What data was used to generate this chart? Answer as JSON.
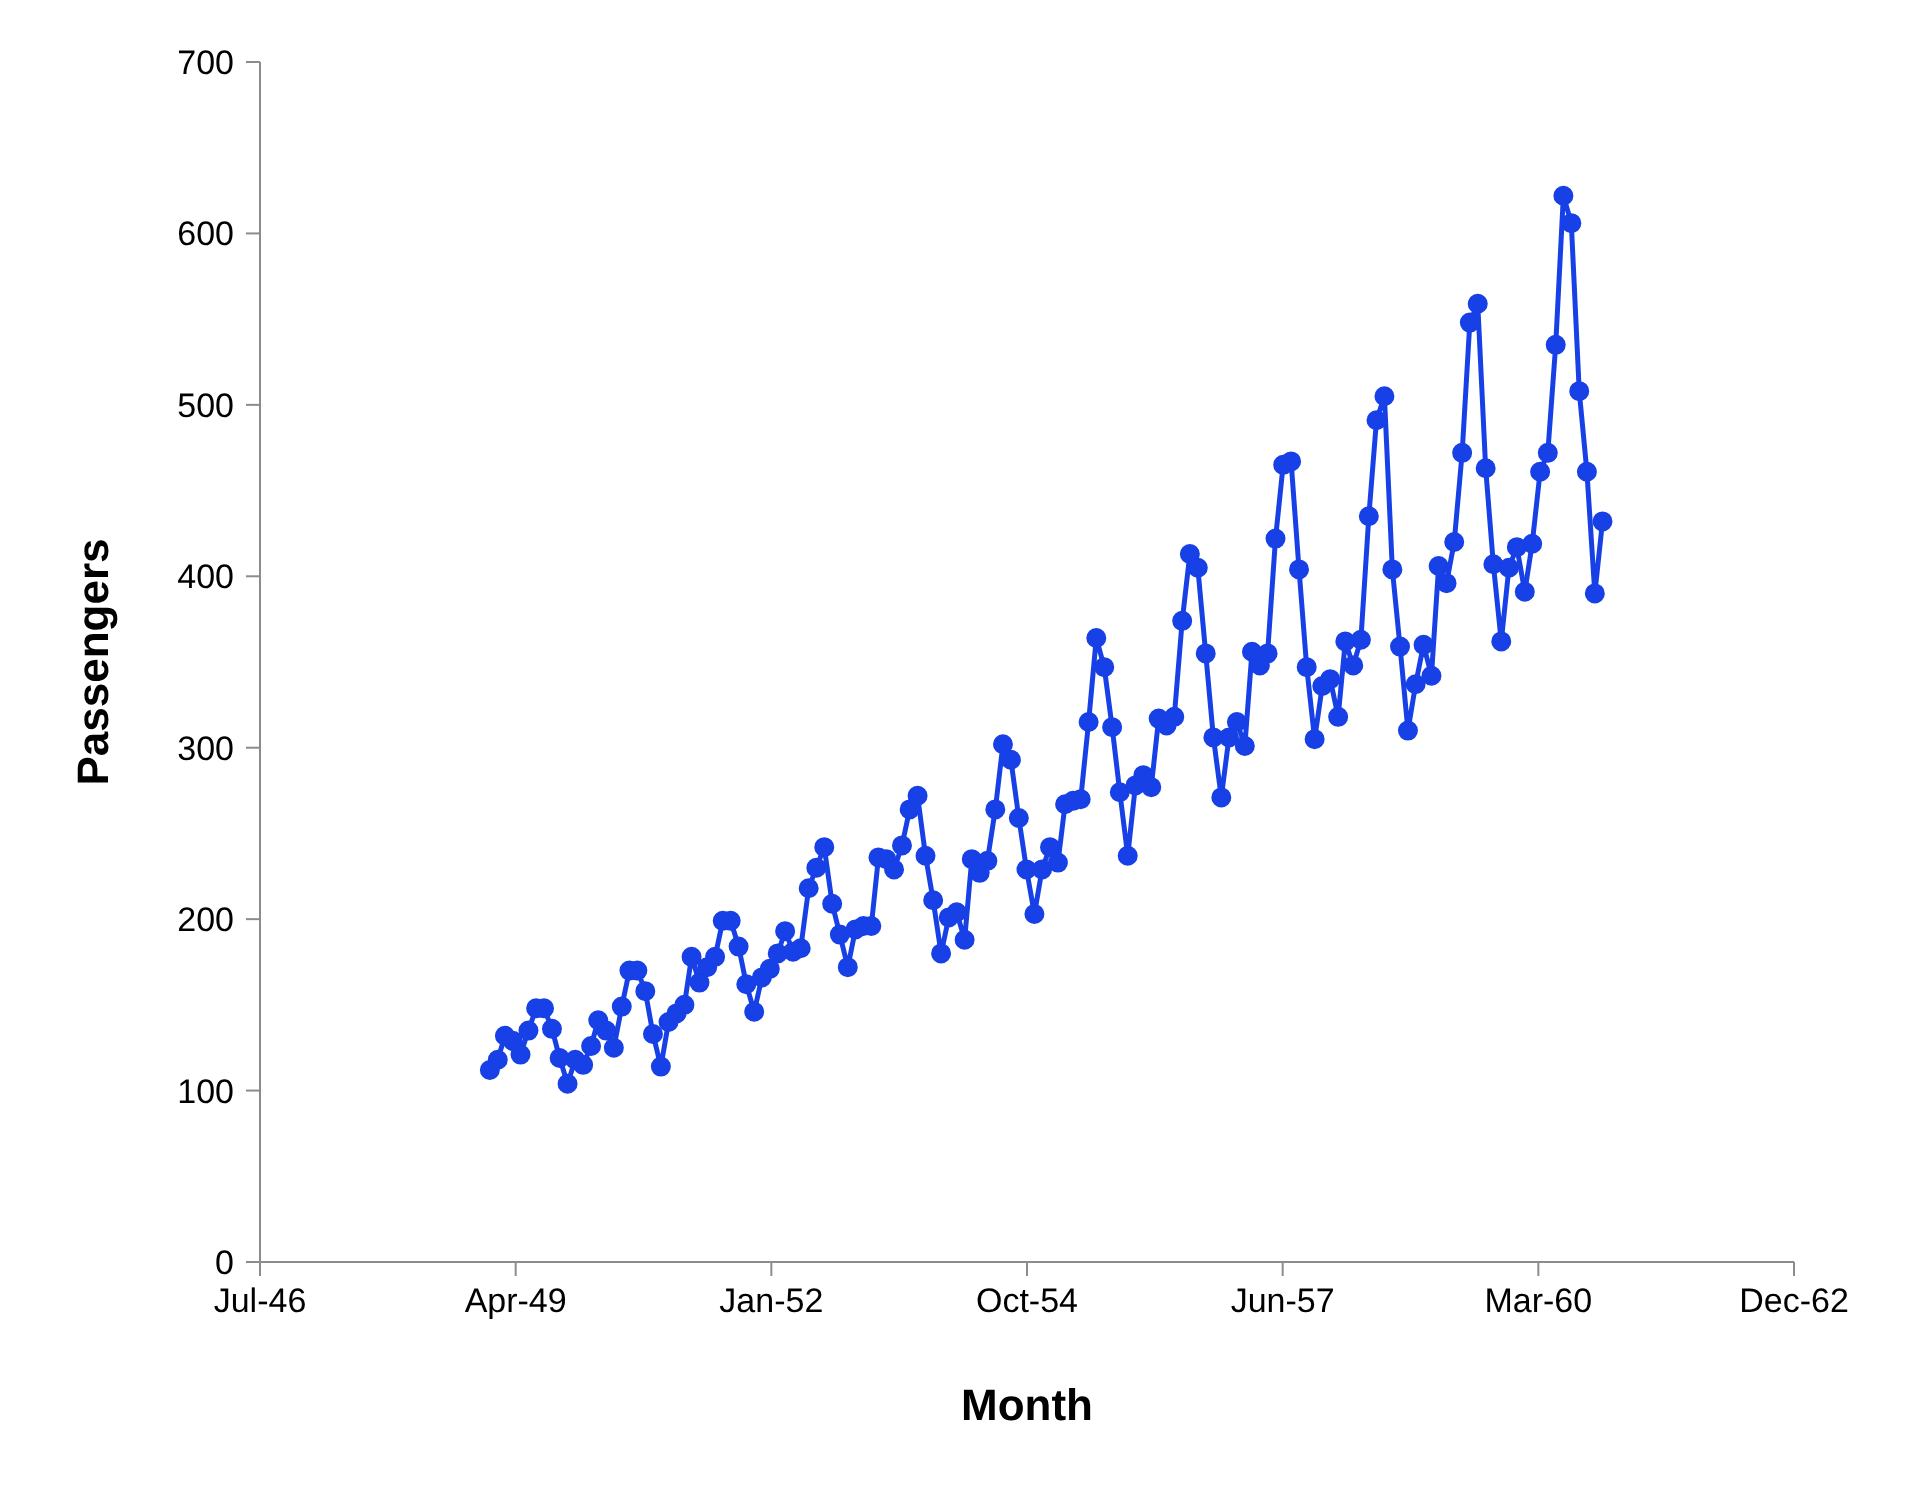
{
  "chart_data": {
    "type": "line",
    "xlabel": "Month",
    "ylabel": "Passengers",
    "x": [
      "1949-01",
      "1949-02",
      "1949-03",
      "1949-04",
      "1949-05",
      "1949-06",
      "1949-07",
      "1949-08",
      "1949-09",
      "1949-10",
      "1949-11",
      "1949-12",
      "1950-01",
      "1950-02",
      "1950-03",
      "1950-04",
      "1950-05",
      "1950-06",
      "1950-07",
      "1950-08",
      "1950-09",
      "1950-10",
      "1950-11",
      "1950-12",
      "1951-01",
      "1951-02",
      "1951-03",
      "1951-04",
      "1951-05",
      "1951-06",
      "1951-07",
      "1951-08",
      "1951-09",
      "1951-10",
      "1951-11",
      "1951-12",
      "1952-01",
      "1952-02",
      "1952-03",
      "1952-04",
      "1952-05",
      "1952-06",
      "1952-07",
      "1952-08",
      "1952-09",
      "1952-10",
      "1952-11",
      "1952-12",
      "1953-01",
      "1953-02",
      "1953-03",
      "1953-04",
      "1953-05",
      "1953-06",
      "1953-07",
      "1953-08",
      "1953-09",
      "1953-10",
      "1953-11",
      "1953-12",
      "1954-01",
      "1954-02",
      "1954-03",
      "1954-04",
      "1954-05",
      "1954-06",
      "1954-07",
      "1954-08",
      "1954-09",
      "1954-10",
      "1954-11",
      "1954-12",
      "1955-01",
      "1955-02",
      "1955-03",
      "1955-04",
      "1955-05",
      "1955-06",
      "1955-07",
      "1955-08",
      "1955-09",
      "1955-10",
      "1955-11",
      "1955-12",
      "1956-01",
      "1956-02",
      "1956-03",
      "1956-04",
      "1956-05",
      "1956-06",
      "1956-07",
      "1956-08",
      "1956-09",
      "1956-10",
      "1956-11",
      "1956-12",
      "1957-01",
      "1957-02",
      "1957-03",
      "1957-04",
      "1957-05",
      "1957-06",
      "1957-07",
      "1957-08",
      "1957-09",
      "1957-10",
      "1957-11",
      "1957-12",
      "1958-01",
      "1958-02",
      "1958-03",
      "1958-04",
      "1958-05",
      "1958-06",
      "1958-07",
      "1958-08",
      "1958-09",
      "1958-10",
      "1958-11",
      "1958-12",
      "1959-01",
      "1959-02",
      "1959-03",
      "1959-04",
      "1959-05",
      "1959-06",
      "1959-07",
      "1959-08",
      "1959-09",
      "1959-10",
      "1959-11",
      "1959-12",
      "1960-01",
      "1960-02",
      "1960-03",
      "1960-04",
      "1960-05",
      "1960-06",
      "1960-07",
      "1960-08",
      "1960-09",
      "1960-10",
      "1960-11",
      "1960-12"
    ],
    "series": [
      {
        "color": "#1741e6",
        "values": [
          112,
          118,
          132,
          129,
          121,
          135,
          148,
          148,
          136,
          119,
          104,
          118,
          115,
          126,
          141,
          135,
          125,
          149,
          170,
          170,
          158,
          133,
          114,
          140,
          145,
          150,
          178,
          163,
          172,
          178,
          199,
          199,
          184,
          162,
          146,
          166,
          171,
          180,
          193,
          181,
          183,
          218,
          230,
          242,
          209,
          191,
          172,
          194,
          196,
          196,
          236,
          235,
          229,
          243,
          264,
          272,
          237,
          211,
          180,
          201,
          204,
          188,
          235,
          227,
          234,
          264,
          302,
          293,
          259,
          229,
          203,
          229,
          242,
          233,
          267,
          269,
          270,
          315,
          364,
          347,
          312,
          274,
          237,
          278,
          284,
          277,
          317,
          313,
          318,
          374,
          413,
          405,
          355,
          306,
          271,
          306,
          315,
          301,
          356,
          348,
          355,
          422,
          465,
          467,
          404,
          347,
          305,
          336,
          340,
          318,
          362,
          348,
          363,
          435,
          491,
          505,
          404,
          359,
          310,
          337,
          360,
          342,
          406,
          396,
          420,
          472,
          548,
          559,
          463,
          407,
          362,
          405,
          417,
          391,
          419,
          461,
          472,
          535,
          622,
          606,
          508,
          461,
          390,
          432
        ]
      }
    ],
    "xlim": [
      "1946-07-17",
      "1962-12-20"
    ],
    "xticks": [
      {
        "value": "1946-07-17",
        "label": "Jul-46"
      },
      {
        "value": "1949-04-12",
        "label": "Apr-49"
      },
      {
        "value": "1952-01-07",
        "label": "Jan-52"
      },
      {
        "value": "1954-10-03",
        "label": "Oct-54"
      },
      {
        "value": "1957-06-29",
        "label": "Jun-57"
      },
      {
        "value": "1960-03-25",
        "label": "Mar-60"
      },
      {
        "value": "1962-12-20",
        "label": "Dec-62"
      }
    ],
    "ylim": [
      0,
      700
    ],
    "yticks": [
      0,
      100,
      200,
      300,
      400,
      500,
      600,
      700
    ],
    "grid": false,
    "legend": false,
    "marker": "circle",
    "line_style": "solid"
  }
}
